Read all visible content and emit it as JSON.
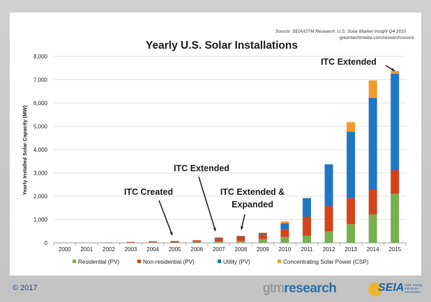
{
  "source_line": "Source: SEIA/GTM Research: U.S. Solar Market Insight Q4 2015",
  "source_url": "greentechmedia.com/research/ussmi",
  "footer": {
    "copyright": "© 2017",
    "gtm_logo_gray": "gtm",
    "gtm_logo_blue": "research",
    "seia_logo": "SEIA",
    "seia_subtitle": "Solar Energy Industries Association"
  },
  "colors": {
    "residential": "#77b04a",
    "non_residential": "#d5431a",
    "utility": "#1f77c4",
    "csp": "#f39a2b",
    "grid": "#d9d9d9",
    "text": "#1a1a1a"
  },
  "chart_data": {
    "type": "bar",
    "stacked": true,
    "title": "Yearly U.S. Solar Installations",
    "xlabel": "",
    "ylabel": "Yearly Installed Solar Capacity (MW)",
    "ylim": [
      0,
      8000
    ],
    "yticks": [
      0,
      1000,
      2000,
      3000,
      4000,
      5000,
      6000,
      7000,
      8000
    ],
    "ytick_labels": [
      "0",
      "1,000",
      "2,000",
      "3,000",
      "4,000",
      "5,000",
      "6,000",
      "7,000",
      "8,000"
    ],
    "grid": true,
    "legend": "bottom",
    "categories": [
      "2000",
      "2001",
      "2002",
      "2003",
      "2004",
      "2005",
      "2006",
      "2007",
      "2008",
      "2009",
      "2010",
      "2011",
      "2012",
      "2013",
      "2014",
      "2015"
    ],
    "series": [
      {
        "name": "Residential (PV)",
        "key": "residential",
        "values": [
          4,
          7,
          12,
          15,
          25,
          30,
          40,
          60,
          80,
          160,
          250,
          300,
          490,
          800,
          1220,
          2100
        ]
      },
      {
        "name": "Non-residential (PV)",
        "key": "non_residential",
        "values": [
          0,
          3,
          10,
          25,
          40,
          50,
          70,
          135,
          200,
          200,
          320,
          820,
          1080,
          1120,
          1050,
          1020
        ]
      },
      {
        "name": "Utility (PV)",
        "key": "utility",
        "values": [
          0,
          0,
          0,
          0,
          0,
          0,
          0,
          20,
          20,
          70,
          270,
          800,
          1800,
          2850,
          3950,
          4140
        ]
      },
      {
        "name": "Concentrating Solar Power (CSP)",
        "key": "csp",
        "values": [
          0,
          0,
          0,
          0,
          0,
          0,
          0,
          30,
          0,
          10,
          80,
          0,
          0,
          410,
          750,
          110
        ]
      }
    ],
    "annotations": [
      {
        "text": "ITC Created",
        "target": "2005"
      },
      {
        "text": "ITC Extended",
        "target": "2007"
      },
      {
        "text": "ITC Extended &",
        "target": "2008"
      },
      {
        "text": "Expanded",
        "target": "2008"
      },
      {
        "text": "ITC Extended",
        "target": "2015"
      }
    ]
  }
}
